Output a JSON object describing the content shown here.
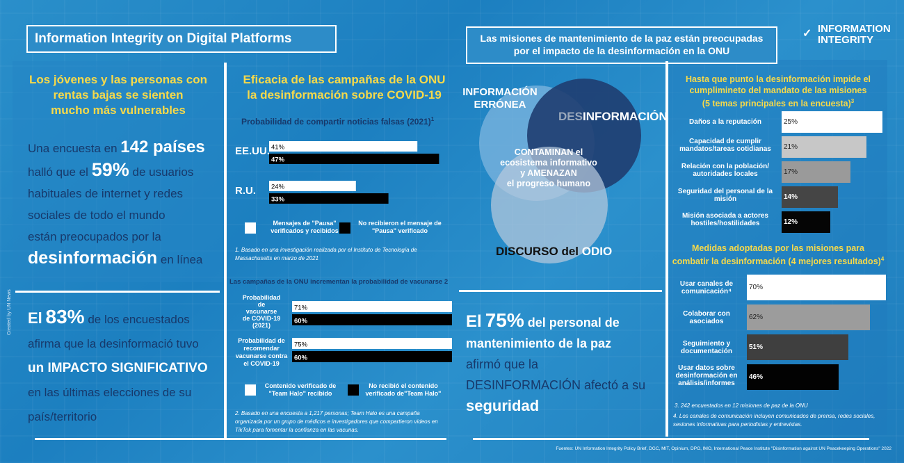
{
  "header": {
    "left_title": "Information Integrity on Digital Platforms",
    "center_title_1": "Las misiones de mantenimiento de la paz están preocupadas",
    "center_title_2": "por el impacto de la desinformación en la ONU",
    "logo_line1": "INFORMATION",
    "logo_line2": "INTEGRITY"
  },
  "left": {
    "heading_1": "Los jóvenes y las personas con",
    "heading_2": "rentas bajas se sienten",
    "heading_3": "mucho más vulnerables",
    "p1_a": "Una encuesta en",
    "p1_b": "142 países",
    "p1_c": "halló que el",
    "p1_d": "59%",
    "p1_e": "de usuarios",
    "p1_f": "habituales de internet y redes",
    "p1_g": "sociales de todo el mundo",
    "p1_h": "están  preocupados por la",
    "p1_i": "desinformación",
    "p1_j": "en línea",
    "p2_a": "El",
    "p2_b": "83%",
    "p2_c": "de los encuestados",
    "p2_d": "afirma que la desinformació tuvo",
    "p2_e": "un IMPACTO SIGNIFICATIVO",
    "p2_f": "en las últimas elecciones de su",
    "p2_g": "país/territorio",
    "credit": "Created by UN News"
  },
  "mid": {
    "heading_1": "Eficacia de las campañas de la ONU",
    "heading_2": "la desinformación sobre COVID-19",
    "chart1_title": "Probabilidad de compartir noticias falsas (2021)",
    "chart1_title_sup": "1",
    "legend1_white": "Mensajes de \"Pausa\" verificados y recibidos",
    "legend1_black": "No recibieron el mensaje de \"Pausa\" verificado",
    "note1": "1. Basado en una investigación realizada por el Instituto de Tecnología de Massachusetts en marzo de 2021",
    "chart2_title": "Las campañas de la ONU incrementan la probabilidad de vacunarse 2",
    "legend2_white": "Contenido verificado de \"Team Halo\" recibido",
    "legend2_black": "No recibió el contenido verificado de\"Team Halo\"",
    "note2": "2. Basado en una encuesta a 1,217 personas; Team Halo es una campaña organizada por un grupo de médicos e investigadores que compartieron videos en TikTok para fomentar la confianza en las vacunas."
  },
  "venn": {
    "c1_line1": "INFORMACIÓN",
    "c1_line2": "ERRÓNEA",
    "c2_a": "DES",
    "c2_b": "INFORMACIÓN",
    "c3_a": "DISCURSO",
    "c3_b": "del",
    "c3_c": "ODIO",
    "center_1": "CONTAMINAN el",
    "center_2": "ecosistema informativo",
    "center_3": "y AMENAZAN",
    "center_4": "el progreso humano",
    "colors": {
      "c1": "#7fb6df",
      "c2": "#1f3d70",
      "c3": "#b7c9dc"
    }
  },
  "bottom_center": {
    "a": "El",
    "b": "75%",
    "c": "del personal de",
    "d": "mantenimiento de la paz",
    "e": "afirmó que la",
    "f": "DESINFORMACIÓN",
    "g": "afectó a su",
    "h": "seguridad"
  },
  "right": {
    "heading_1": "Hasta que punto la desinformación impide el",
    "heading_2": "cumplimineto del mandato de las misiones",
    "heading_3": "(5 temas principales en la encuesta)",
    "heading_3_sup": "3",
    "heading2_1": "Medidas adoptadas por las misiones para",
    "heading2_2": "combatir la desinformación (4 mejores resultados)",
    "heading2_sup": "4",
    "note3": "3. 242 encuestados en 12 misiones de paz  de la ONU",
    "note4": "4. Los canales de comunicación incluyen comunicados de prensa, redes sociales, sesiones informativas para periodistas y entrevistas."
  },
  "footer": {
    "sources": "Fuentes: UN Information Integrity Policy Brief, DGC, MIT, Opinium, DPO, IMO, International Peace Institute \"Disinformation against UN Peacekeeping Operations\" 2022"
  },
  "chart_data": [
    {
      "type": "bar",
      "title": "Probabilidad de compartir noticias falsas (2021)",
      "categories": [
        "EE.UU.",
        "R.U."
      ],
      "series": [
        {
          "name": "Mensajes de \"Pausa\" verificados y recibidos",
          "values": [
            41,
            24
          ],
          "labels": [
            "41%",
            "24%"
          ],
          "color": "#ffffff"
        },
        {
          "name": "No recibieron el mensaje de \"Pausa\" verificado",
          "values": [
            47,
            33
          ],
          "labels": [
            "47%",
            "33%"
          ],
          "color": "#000000"
        }
      ]
    },
    {
      "type": "bar",
      "title": "Las campañas de la ONU incrementan la probabilidad de vacunarse 2",
      "categories": [
        "Probabilidad de vacunarse de COVID-19 (2021)",
        "Probabilidad de recomendar vacunarse contra el COVID-19"
      ],
      "series": [
        {
          "name": "Contenido verificado de \"Team Halo\" recibido",
          "values": [
            71,
            75
          ],
          "labels": [
            "71%",
            "75%"
          ],
          "color": "#ffffff"
        },
        {
          "name": "No recibió el contenido verificado de\"Team Halo\"",
          "values": [
            60,
            60
          ],
          "labels": [
            "60%",
            "60%"
          ],
          "color": "#000000"
        }
      ]
    },
    {
      "type": "bar",
      "title": "Hasta que punto la desinformación impide el cumplimineto del mandato de las misiones (5 temas principales en la encuesta)",
      "categories": [
        "Daños a la reputación",
        "Capacidad de cumplir mandatos/tareas cotidianas",
        "Relación con la población/ autoridades locales",
        "Seguridad del personal de la misión",
        "Misión asociada a actores hostiles/hostilidades"
      ],
      "values": [
        25,
        21,
        17,
        14,
        12
      ],
      "labels": [
        "25%",
        "21%",
        "17%",
        "14%",
        "12%"
      ],
      "colors": [
        "#ffffff",
        "#c7c7c7",
        "#9a9a9a",
        "#454545",
        "#050505"
      ]
    },
    {
      "type": "bar",
      "title": "Medidas adoptadas por las misiones para combatir la desinformación (4 mejores resultados)",
      "categories": [
        "Usar canales de comunicación⁴",
        "Colaborar con asociados",
        "Seguimiento y documentación",
        "Usar datos sobre desinformación en análisis/informes"
      ],
      "values": [
        70,
        62,
        51,
        46
      ],
      "labels": [
        "70%",
        "62%",
        "51%",
        "46%"
      ],
      "colors": [
        "#ffffff",
        "#9c9c9c",
        "#3f3f3f",
        "#020202"
      ]
    }
  ]
}
